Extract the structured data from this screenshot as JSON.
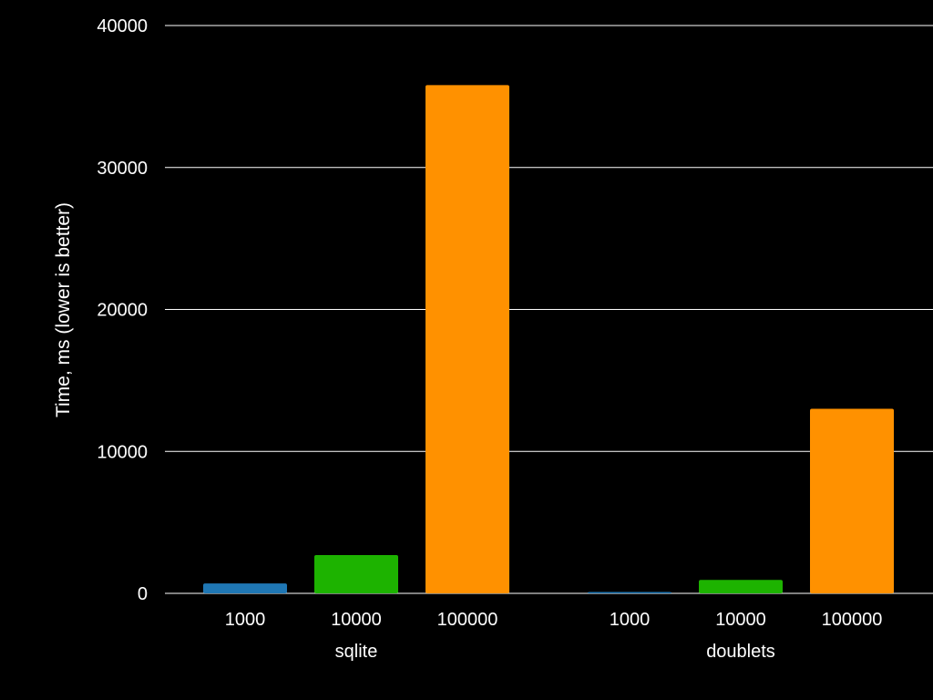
{
  "chart_data": {
    "type": "bar",
    "ylabel": "Time, ms (lower is better)",
    "ylim": [
      0,
      40000
    ],
    "yticks": [
      0,
      10000,
      20000,
      30000,
      40000
    ],
    "grid": true,
    "groups": [
      {
        "name": "sqlite",
        "bars": [
          {
            "label": "1000",
            "value": 700,
            "color": "#1f77b4"
          },
          {
            "label": "10000",
            "value": 2700,
            "color": "#1db300"
          },
          {
            "label": "100000",
            "value": 35800,
            "color": "#ff9100"
          }
        ]
      },
      {
        "name": "doublets",
        "bars": [
          {
            "label": "1000",
            "value": 80,
            "color": "#1f77b4"
          },
          {
            "label": "10000",
            "value": 950,
            "color": "#1db300"
          },
          {
            "label": "100000",
            "value": 13000,
            "color": "#ff9100"
          }
        ]
      }
    ]
  }
}
